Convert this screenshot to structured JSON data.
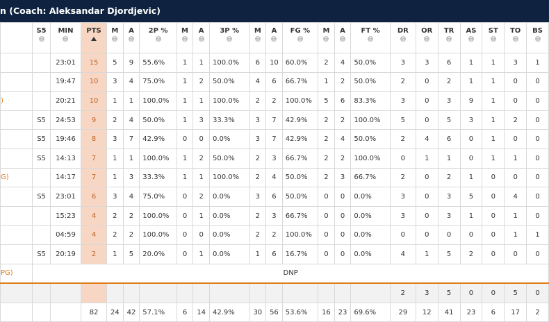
{
  "header": {
    "title": "n (Coach: Aleksandar Djordjevic)"
  },
  "columns": [
    "",
    "S5",
    "MIN",
    "PTS",
    "M",
    "A",
    "2P %",
    "M",
    "A",
    "3P %",
    "M",
    "A",
    "FG %",
    "M",
    "A",
    "FT %",
    "DR",
    "OR",
    "TR",
    "AS",
    "ST",
    "TO",
    "BS"
  ],
  "rows": [
    {
      "name": "",
      "s5": "",
      "min": "23:01",
      "pts": "15",
      "m2": "5",
      "a2": "9",
      "p2": "55.6%",
      "m3": "1",
      "a3": "1",
      "p3": "100.0%",
      "mfg": "6",
      "afg": "10",
      "pfg": "60.0%",
      "mft": "2",
      "aft": "4",
      "pft": "50.0%",
      "dr": "3",
      "or": "3",
      "tr": "6",
      "as": "1",
      "st": "1",
      "to": "3",
      "bs": "1"
    },
    {
      "name": "",
      "s5": "",
      "min": "19:47",
      "pts": "10",
      "m2": "3",
      "a2": "4",
      "p2": "75.0%",
      "m3": "1",
      "a3": "2",
      "p3": "50.0%",
      "mfg": "4",
      "afg": "6",
      "pfg": "66.7%",
      "mft": "1",
      "aft": "2",
      "pft": "50.0%",
      "dr": "2",
      "or": "0",
      "tr": "2",
      "as": "1",
      "st": "1",
      "to": "0",
      "bs": "0"
    },
    {
      "name": ")",
      "s5": "",
      "min": "20:21",
      "pts": "10",
      "m2": "1",
      "a2": "1",
      "p2": "100.0%",
      "m3": "1",
      "a3": "1",
      "p3": "100.0%",
      "mfg": "2",
      "afg": "2",
      "pfg": "100.0%",
      "mft": "5",
      "aft": "6",
      "pft": "83.3%",
      "dr": "3",
      "or": "0",
      "tr": "3",
      "as": "9",
      "st": "1",
      "to": "0",
      "bs": "0"
    },
    {
      "name": "",
      "s5": "S5",
      "min": "24:53",
      "pts": "9",
      "m2": "2",
      "a2": "4",
      "p2": "50.0%",
      "m3": "1",
      "a3": "3",
      "p3": "33.3%",
      "mfg": "3",
      "afg": "7",
      "pfg": "42.9%",
      "mft": "2",
      "aft": "2",
      "pft": "100.0%",
      "dr": "5",
      "or": "0",
      "tr": "5",
      "as": "3",
      "st": "1",
      "to": "2",
      "bs": "0"
    },
    {
      "name": "",
      "s5": "S5",
      "min": "19:46",
      "pts": "8",
      "m2": "3",
      "a2": "7",
      "p2": "42.9%",
      "m3": "0",
      "a3": "0",
      "p3": "0.0%",
      "mfg": "3",
      "afg": "7",
      "pfg": "42.9%",
      "mft": "2",
      "aft": "4",
      "pft": "50.0%",
      "dr": "2",
      "or": "4",
      "tr": "6",
      "as": "0",
      "st": "1",
      "to": "0",
      "bs": "0"
    },
    {
      "name": "",
      "s5": "S5",
      "min": "14:13",
      "pts": "7",
      "m2": "1",
      "a2": "1",
      "p2": "100.0%",
      "m3": "1",
      "a3": "2",
      "p3": "50.0%",
      "mfg": "2",
      "afg": "3",
      "pfg": "66.7%",
      "mft": "2",
      "aft": "2",
      "pft": "100.0%",
      "dr": "0",
      "or": "1",
      "tr": "1",
      "as": "0",
      "st": "1",
      "to": "1",
      "bs": "0"
    },
    {
      "name": "G)",
      "s5": "",
      "min": "14:17",
      "pts": "7",
      "m2": "1",
      "a2": "3",
      "p2": "33.3%",
      "m3": "1",
      "a3": "1",
      "p3": "100.0%",
      "mfg": "2",
      "afg": "4",
      "pfg": "50.0%",
      "mft": "2",
      "aft": "3",
      "pft": "66.7%",
      "dr": "2",
      "or": "0",
      "tr": "2",
      "as": "1",
      "st": "0",
      "to": "0",
      "bs": "0"
    },
    {
      "name": "",
      "s5": "S5",
      "min": "23:01",
      "pts": "6",
      "m2": "3",
      "a2": "4",
      "p2": "75.0%",
      "m3": "0",
      "a3": "2",
      "p3": "0.0%",
      "mfg": "3",
      "afg": "6",
      "pfg": "50.0%",
      "mft": "0",
      "aft": "0",
      "pft": "0.0%",
      "dr": "3",
      "or": "0",
      "tr": "3",
      "as": "5",
      "st": "0",
      "to": "4",
      "bs": "0"
    },
    {
      "name": "",
      "s5": "",
      "min": "15:23",
      "pts": "4",
      "m2": "2",
      "a2": "2",
      "p2": "100.0%",
      "m3": "0",
      "a3": "1",
      "p3": "0.0%",
      "mfg": "2",
      "afg": "3",
      "pfg": "66.7%",
      "mft": "0",
      "aft": "0",
      "pft": "0.0%",
      "dr": "3",
      "or": "0",
      "tr": "3",
      "as": "1",
      "st": "0",
      "to": "1",
      "bs": "0"
    },
    {
      "name": "",
      "s5": "",
      "min": "04:59",
      "pts": "4",
      "m2": "2",
      "a2": "2",
      "p2": "100.0%",
      "m3": "0",
      "a3": "0",
      "p3": "0.0%",
      "mfg": "2",
      "afg": "2",
      "pfg": "100.0%",
      "mft": "0",
      "aft": "0",
      "pft": "0.0%",
      "dr": "0",
      "or": "0",
      "tr": "0",
      "as": "0",
      "st": "0",
      "to": "1",
      "bs": "1"
    },
    {
      "name": "",
      "s5": "S5",
      "min": "20:19",
      "pts": "2",
      "m2": "1",
      "a2": "5",
      "p2": "20.0%",
      "m3": "0",
      "a3": "1",
      "p3": "0.0%",
      "mfg": "1",
      "afg": "6",
      "pfg": "16.7%",
      "mft": "0",
      "aft": "0",
      "pft": "0.0%",
      "dr": "4",
      "or": "1",
      "tr": "5",
      "as": "2",
      "st": "0",
      "to": "0",
      "bs": "0"
    }
  ],
  "dnp_row": {
    "name": "PG)",
    "text": "DNP"
  },
  "team_row": {
    "dr": "2",
    "or": "3",
    "tr": "5",
    "as": "0",
    "st": "0",
    "to": "5",
    "bs": "0"
  },
  "totals_row": {
    "pts": "82",
    "m2": "24",
    "a2": "42",
    "p2": "57.1%",
    "m3": "6",
    "a3": "14",
    "p3": "42.9%",
    "mfg": "30",
    "afg": "56",
    "pfg": "53.6%",
    "mft": "16",
    "aft": "23",
    "pft": "69.6%",
    "dr": "29",
    "or": "12",
    "tr": "41",
    "as": "23",
    "st": "6",
    "to": "17",
    "bs": "2"
  },
  "colors": {
    "header_bg": "#0f2341",
    "accent": "#e07b18",
    "pts_bg": "#f7d7c4"
  }
}
